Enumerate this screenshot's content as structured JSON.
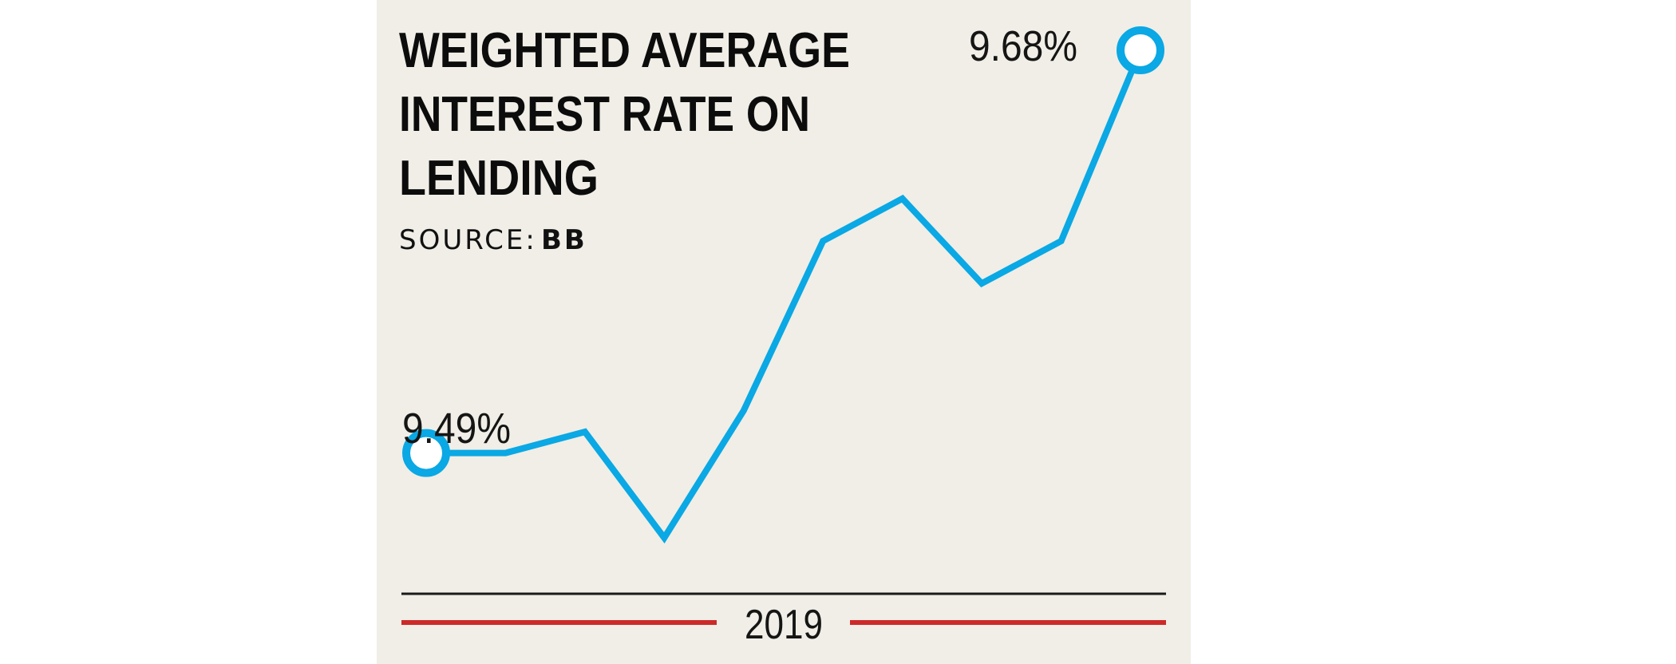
{
  "chart_data": {
    "type": "line",
    "title_lines": [
      "WEIGHTED AVERAGE",
      "INTEREST RATE ON",
      "LENDING"
    ],
    "source_label": "SOURCE:",
    "source_value": "BB",
    "x_period_label": "2019",
    "series": [
      {
        "values": [
          9.49,
          9.49,
          9.5,
          9.45,
          9.51,
          9.59,
          9.61,
          9.57,
          9.59,
          9.68
        ]
      }
    ],
    "annotations": {
      "start": "9.49%",
      "end": "9.68%"
    },
    "ylim": [
      9.43,
      9.68
    ],
    "grid": false,
    "legend": "none",
    "colors": {
      "background": "#f0eee6",
      "line": "#0aa8e4",
      "baseline": "#1a1a1a",
      "period_rule": "#cc2a2a"
    }
  }
}
